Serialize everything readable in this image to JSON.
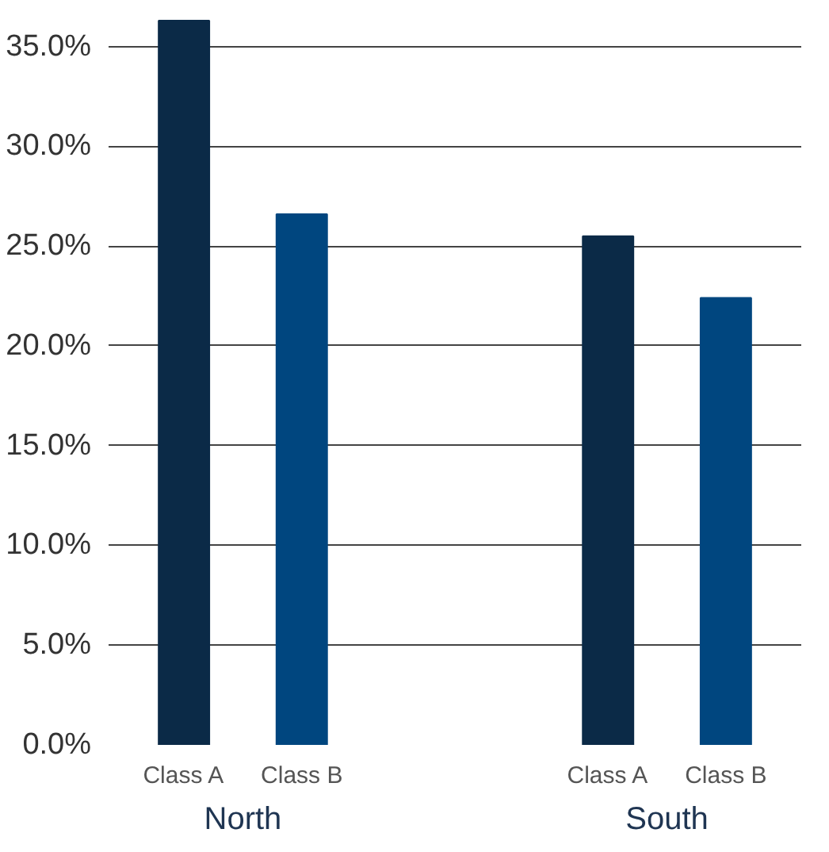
{
  "chart_data": {
    "type": "bar",
    "categories": [
      "North",
      "South"
    ],
    "series": [
      {
        "name": "Class A",
        "color": "#0b2a47",
        "values": [
          36.3,
          25.5
        ]
      },
      {
        "name": "Class B",
        "color": "#00467f",
        "values": [
          26.6,
          22.4
        ]
      }
    ],
    "ylim": [
      0,
      36.5
    ],
    "yticks": [
      {
        "value": 0,
        "label": "0.0%"
      },
      {
        "value": 5,
        "label": "5.0%"
      },
      {
        "value": 10,
        "label": "10.0%"
      },
      {
        "value": 15,
        "label": "15.0%"
      },
      {
        "value": 20,
        "label": "20.0%"
      },
      {
        "value": 25,
        "label": "25.0%"
      },
      {
        "value": 30,
        "label": "30.0%"
      },
      {
        "value": 35,
        "label": "35.0%"
      }
    ],
    "grid": "y"
  }
}
